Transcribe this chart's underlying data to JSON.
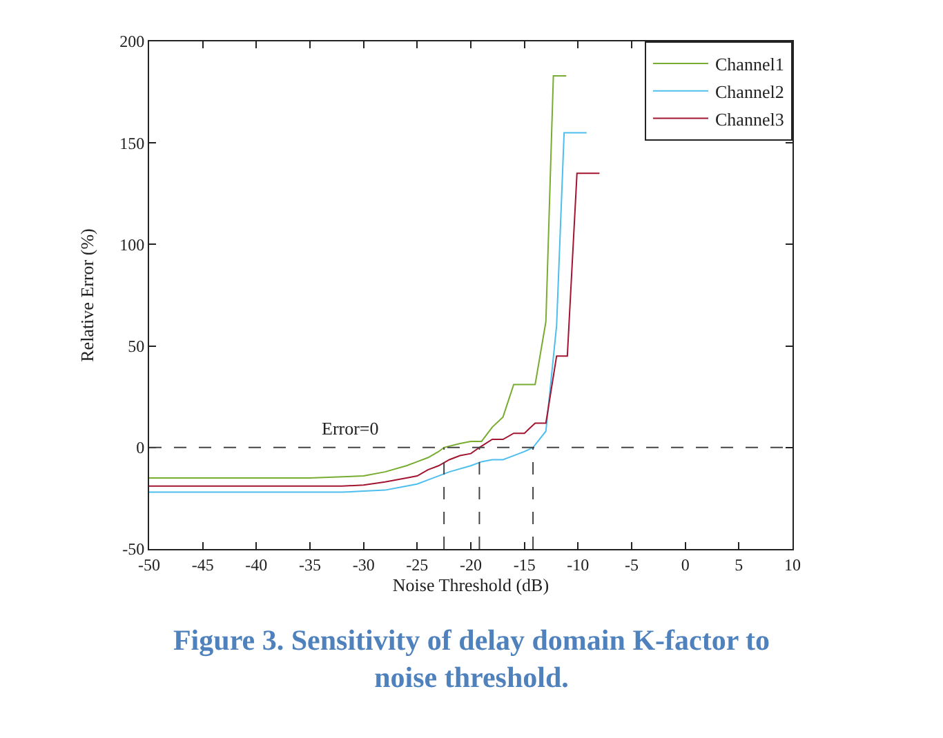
{
  "chart_data": {
    "type": "line",
    "title": "Figure 3. Sensitivity of delay domain K-factor to noise threshold.",
    "xlabel": "Noise Threshold (dB)",
    "ylabel": "Relative Error (%)",
    "xlim": [
      -50,
      10
    ],
    "xticks": [
      -50,
      -45,
      -40,
      -35,
      -30,
      -25,
      -20,
      -15,
      -10,
      -5,
      0,
      5,
      10
    ],
    "ylim": [
      -50,
      200
    ],
    "yticks": [
      -50,
      0,
      50,
      100,
      150,
      200
    ],
    "legend": "top right",
    "series": [
      {
        "name": "Channel1",
        "color": "#77ac30",
        "x": [
          -50,
          -35,
          -30,
          -28,
          -26,
          -25,
          -24,
          -23,
          -22.5,
          -21,
          -20,
          -19,
          -18,
          -17,
          -16,
          -15,
          -14,
          -13,
          -12.3,
          -11.1
        ],
        "values": [
          -15,
          -15,
          -14,
          -12,
          -9,
          -7,
          -5,
          -2,
          0,
          2,
          3,
          3,
          10,
          15,
          31,
          31,
          31,
          62,
          183,
          183
        ]
      },
      {
        "name": "Channel2",
        "color": "#4dbeee",
        "x": [
          -50,
          -32,
          -30,
          -28,
          -26,
          -25,
          -24,
          -22,
          -20,
          -19,
          -18,
          -17,
          -16,
          -15,
          -14.2,
          -13,
          -12,
          -11.3,
          -9.2
        ],
        "values": [
          -22,
          -22,
          -21.5,
          -21,
          -19,
          -18,
          -16,
          -12,
          -9,
          -7,
          -6,
          -6,
          -4,
          -2,
          0,
          8,
          60,
          155,
          155
        ]
      },
      {
        "name": "Channel3",
        "color": "#a2142f",
        "x": [
          -50,
          -32,
          -30,
          -28,
          -26,
          -25,
          -24,
          -23,
          -22,
          -21,
          -20,
          -19.2,
          -18,
          -17,
          -16,
          -15,
          -14,
          -13,
          -12,
          -11,
          -10.1,
          -8
        ],
        "values": [
          -19,
          -19,
          -18.5,
          -17,
          -15,
          -14,
          -11,
          -9,
          -6,
          -4,
          -3,
          0,
          4,
          4,
          7,
          7,
          12,
          12,
          45,
          45,
          135,
          135
        ]
      }
    ],
    "ref_lines": [
      {
        "axis": "y",
        "value": 0,
        "color": "#444444",
        "line_style": "dashed",
        "label": "Error=0"
      },
      {
        "axis": "x",
        "value": -22.5,
        "color": "#444444",
        "line_style": "dashed"
      },
      {
        "axis": "x",
        "value": -19.2,
        "color": "#444444",
        "line_style": "dashed"
      },
      {
        "axis": "x",
        "value": -14.2,
        "color": "#444444",
        "line_style": "dashed"
      }
    ]
  }
}
